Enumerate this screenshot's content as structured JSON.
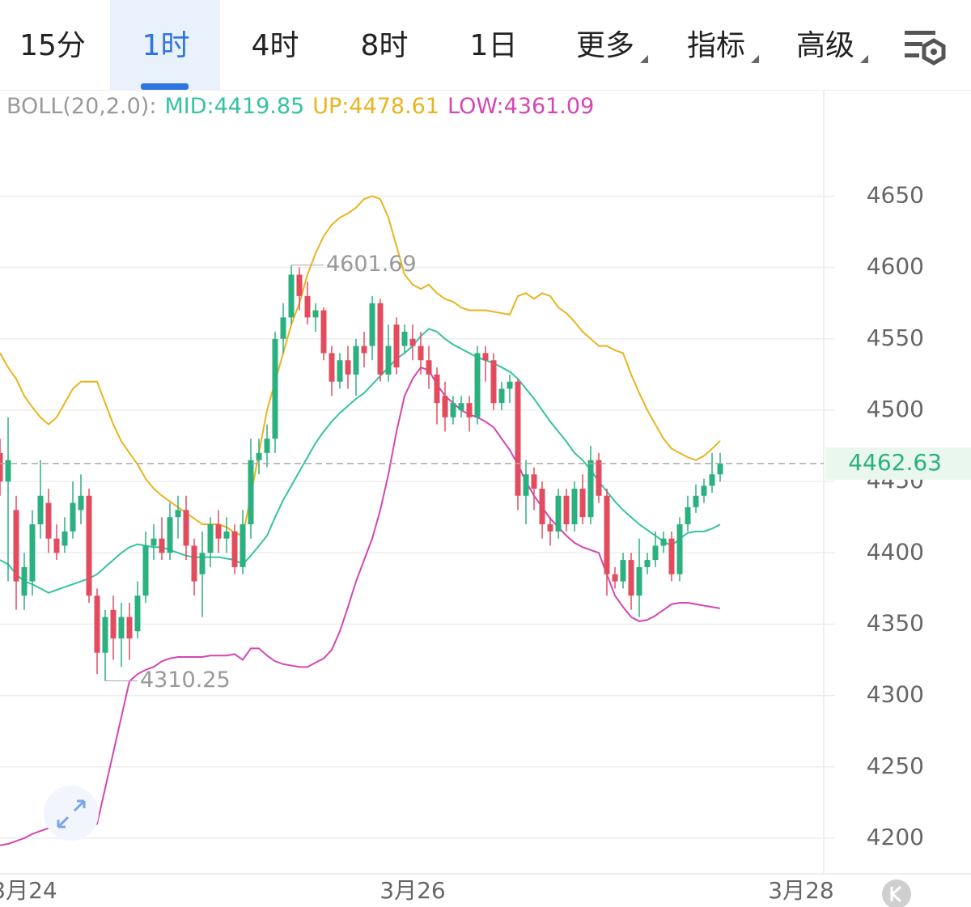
{
  "tabs": [
    "15分",
    "1时",
    "4时",
    "8时",
    "1日",
    "更多",
    "指标",
    "高级"
  ],
  "active_tab": 1,
  "chart_data": {
    "type": "candlestick",
    "legend": {
      "title": "BOLL(20,2.0):",
      "mid": "MID:4419.85",
      "up": "UP:4478.61",
      "low": "LOW:4361.09"
    },
    "up_color": "#2bb07f",
    "down_color": "#e24c5e",
    "open": [
      4470,
      4450,
      4430,
      4370,
      4380,
      4420,
      4435,
      4410,
      4405,
      4415,
      4430,
      4440,
      4370,
      4330,
      4360,
      4340,
      4355,
      4345,
      4370,
      4405,
      4410,
      4400,
      4425,
      4430,
      4405,
      4385,
      4400,
      4420,
      4410,
      4415,
      4390,
      4420,
      4465,
      4470,
      4480,
      4550,
      4565,
      4595,
      4580,
      4565,
      4570,
      4540,
      4520,
      4535,
      4525,
      4545,
      4545,
      4575,
      4525,
      4560,
      4545,
      4550,
      4545,
      4535,
      4525,
      4510,
      4495,
      4500,
      4505,
      4495,
      4540,
      4535,
      4505,
      4515,
      4520,
      4440,
      4455,
      4445,
      4420,
      4415,
      4440,
      4420,
      4445,
      4425,
      4465,
      4440,
      4385,
      4380,
      4395,
      4370,
      4390,
      4395,
      4405,
      4410,
      4385,
      4420,
      4432,
      4440,
      4447,
      4455
    ],
    "high": [
      4480,
      4495,
      4440,
      4400,
      4430,
      4465,
      4445,
      4420,
      4425,
      4450,
      4455,
      4445,
      4375,
      4360,
      4370,
      4365,
      4365,
      4380,
      4415,
      4420,
      4425,
      4435,
      4440,
      4440,
      4410,
      4415,
      4425,
      4430,
      4425,
      4420,
      4430,
      4480,
      4480,
      4490,
      4555,
      4575,
      4601.69,
      4600,
      4590,
      4575,
      4572,
      4545,
      4540,
      4545,
      4550,
      4555,
      4580,
      4578,
      4560,
      4565,
      4560,
      4560,
      4555,
      4545,
      4530,
      4520,
      4510,
      4510,
      4510,
      4545,
      4545,
      4540,
      4520,
      4525,
      4522,
      4465,
      4460,
      4450,
      4425,
      4445,
      4445,
      4450,
      4455,
      4475,
      4470,
      4445,
      4390,
      4400,
      4400,
      4410,
      4400,
      4415,
      4415,
      4415,
      4425,
      4440,
      4448,
      4452,
      4470,
      4470
    ],
    "low": [
      4440,
      4380,
      4360,
      4360,
      4370,
      4410,
      4400,
      4395,
      4400,
      4410,
      4420,
      4365,
      4315,
      4310.25,
      4325,
      4320,
      4325,
      4340,
      4365,
      4395,
      4395,
      4395,
      4410,
      4395,
      4370,
      4355,
      4390,
      4400,
      4400,
      4385,
      4385,
      4410,
      4455,
      4460,
      4470,
      4540,
      4560,
      4570,
      4560,
      4555,
      4535,
      4510,
      4515,
      4515,
      4510,
      4530,
      4535,
      4520,
      4520,
      4525,
      4540,
      4535,
      4525,
      4515,
      4490,
      4485,
      4490,
      4495,
      4485,
      4490,
      4520,
      4500,
      4500,
      4505,
      4430,
      4420,
      4430,
      4410,
      4405,
      4410,
      4415,
      4415,
      4420,
      4420,
      4435,
      4370,
      4375,
      4375,
      4360,
      4355,
      4385,
      4390,
      4400,
      4380,
      4380,
      4415,
      4428,
      4435,
      4442,
      4450
    ],
    "close": [
      4450,
      4465,
      4380,
      4390,
      4420,
      4440,
      4410,
      4400,
      4415,
      4435,
      4440,
      4370,
      4330,
      4355,
      4340,
      4355,
      4340,
      4370,
      4405,
      4410,
      4400,
      4425,
      4430,
      4405,
      4380,
      4400,
      4420,
      4410,
      4415,
      4390,
      4420,
      4465,
      4470,
      4480,
      4550,
      4565,
      4595,
      4580,
      4565,
      4570,
      4540,
      4520,
      4535,
      4525,
      4545,
      4540,
      4575,
      4525,
      4545,
      4530,
      4555,
      4545,
      4535,
      4525,
      4505,
      4495,
      4505,
      4505,
      4495,
      4540,
      4535,
      4505,
      4515,
      4520,
      4440,
      4455,
      4445,
      4420,
      4415,
      4440,
      4420,
      4445,
      4425,
      4465,
      4440,
      4385,
      4380,
      4395,
      4370,
      4390,
      4395,
      4405,
      4410,
      4385,
      4420,
      4432,
      4440,
      4447,
      4455,
      4462.63
    ],
    "series": [
      {
        "name": "UP",
        "color": "#e9b41f",
        "values": [
          4540,
          4530,
          4522,
          4510,
          4502,
          4495,
          4490,
          4495,
          4505,
          4515,
          4520,
          4520,
          4520,
          4505,
          4490,
          4478,
          4470,
          4462,
          4452,
          4445,
          4440,
          4436,
          4432,
          4428,
          4424,
          4420,
          4420,
          4420,
          4418,
          4414,
          4412,
          4440,
          4470,
          4500,
          4520,
          4540,
          4560,
          4575,
          4595,
          4610,
          4622,
          4630,
          4635,
          4638,
          4642,
          4648,
          4650,
          4648,
          4635,
          4615,
          4595,
          4588,
          4585,
          4588,
          4582,
          4578,
          4576,
          4572,
          4570,
          4570,
          4570,
          4569,
          4568,
          4567,
          4580,
          4582,
          4578,
          4582,
          4580,
          4572,
          4568,
          4562,
          4555,
          4550,
          4545,
          4545,
          4542,
          4540,
          4525,
          4512,
          4500,
          4490,
          4480,
          4473,
          4470,
          4467,
          4465,
          4468,
          4473,
          4478.61
        ]
      },
      {
        "name": "MID",
        "color": "#35c3a0",
        "values": [
          4395,
          4392,
          4385,
          4380,
          4378,
          4375,
          4372,
          4374,
          4376,
          4378,
          4380,
          4382,
          4385,
          4390,
          4395,
          4400,
          4404,
          4406,
          4405,
          4404,
          4404,
          4402,
          4400,
          4398,
          4397,
          4397,
          4397,
          4397,
          4396,
          4395,
          4392,
          4398,
          4405,
          4412,
          4425,
          4437,
          4447,
          4457,
          4467,
          4477,
          4485,
          4492,
          4498,
          4503,
          4508,
          4512,
          4518,
          4524,
          4530,
          4536,
          4540,
          4545,
          4552,
          4557,
          4555,
          4550,
          4546,
          4543,
          4540,
          4537,
          4535,
          4533,
          4530,
          4527,
          4522,
          4515,
          4508,
          4500,
          4492,
          4485,
          4478,
          4470,
          4465,
          4458,
          4450,
          4443,
          4436,
          4430,
          4425,
          4420,
          4416,
          4412,
          4408,
          4405,
          4410,
          4414,
          4415,
          4415,
          4417,
          4419.85
        ]
      },
      {
        "name": "LOW",
        "color": "#d446b2",
        "values": [
          4195,
          4196,
          4198,
          4200,
          4203,
          4205,
          4207,
          4208,
          4208,
          4208,
          4208,
          4209,
          4210,
          4235,
          4260,
          4285,
          4310,
          4315,
          4318,
          4320,
          4324,
          4326,
          4327,
          4327,
          4327,
          4327,
          4328,
          4328,
          4328,
          4329,
          4325,
          4333,
          4333,
          4328,
          4324,
          4322,
          4321,
          4320,
          4320,
          4323,
          4326,
          4332,
          4345,
          4362,
          4380,
          4395,
          4410,
          4430,
          4455,
          4485,
          4510,
          4522,
          4530,
          4528,
          4518,
          4510,
          4505,
          4500,
          4497,
          4495,
          4492,
          4488,
          4480,
          4472,
          4462,
          4450,
          4440,
          4432,
          4424,
          4418,
          4412,
          4407,
          4404,
          4402,
          4400,
          4385,
          4370,
          4362,
          4355,
          4352,
          4353,
          4356,
          4360,
          4364,
          4365,
          4365,
          4364,
          4363,
          4362,
          4361.09
        ]
      }
    ],
    "ylim": [
      4175,
      4724
    ],
    "yticks": [
      4200,
      4250,
      4300,
      4350,
      4400,
      4450,
      4500,
      4550,
      4600,
      4650
    ],
    "xlim": [
      0,
      101.8
    ],
    "xticks": [
      {
        "value": 3,
        "label": "3月24"
      },
      {
        "value": 51,
        "label": "3月26"
      },
      {
        "value": 99,
        "label": "3月28"
      }
    ],
    "grid": true
  }
}
